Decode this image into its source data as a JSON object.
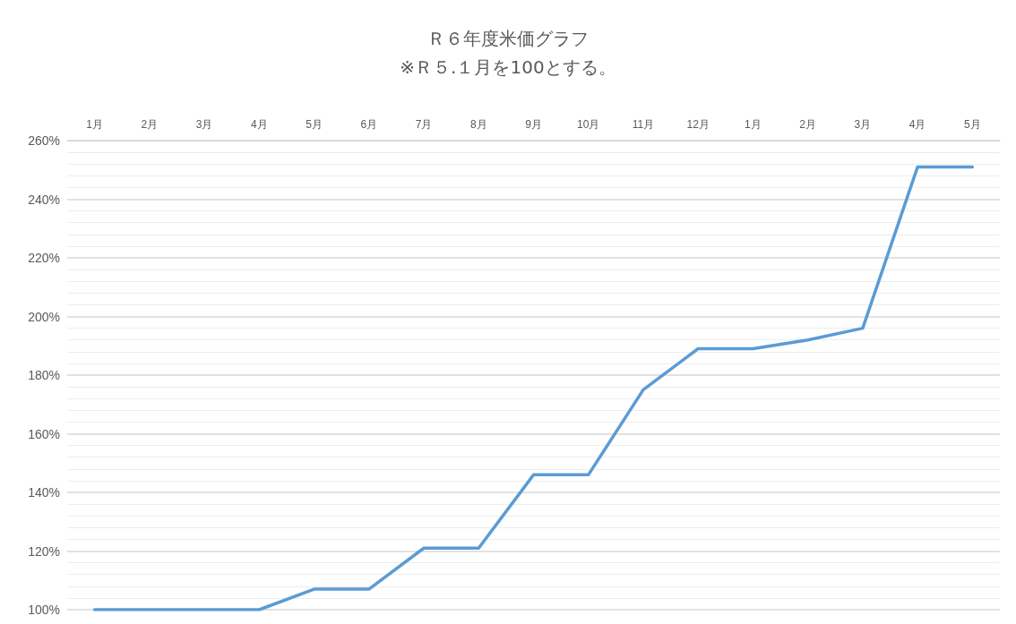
{
  "chart_data": {
    "type": "line",
    "title": "Ｒ６年度米価グラフ",
    "subtitle": "※Ｒ５.１月を100とする。",
    "categories": [
      "1月",
      "2月",
      "3月",
      "4月",
      "5月",
      "6月",
      "7月",
      "8月",
      "9月",
      "10月",
      "11月",
      "12月",
      "1月",
      "2月",
      "3月",
      "4月",
      "5月"
    ],
    "series": [
      {
        "color": "#5b9bd5",
        "values": [
          100,
          100,
          100,
          100,
          107,
          107,
          121,
          121,
          146,
          146,
          175,
          189,
          189,
          192,
          196,
          251,
          251
        ]
      }
    ],
    "ylim": [
      100,
      260
    ],
    "yticks": [
      {
        "value": 100,
        "label": "100%"
      },
      {
        "value": 120,
        "label": "120%"
      },
      {
        "value": 140,
        "label": "140%"
      },
      {
        "value": 160,
        "label": "160%"
      },
      {
        "value": 180,
        "label": "180%"
      },
      {
        "value": 200,
        "label": "200%"
      },
      {
        "value": 220,
        "label": "220%"
      },
      {
        "value": 240,
        "label": "240%"
      },
      {
        "value": 260,
        "label": "260%"
      }
    ],
    "grid": true,
    "marker": "none",
    "line_style": "solid"
  }
}
